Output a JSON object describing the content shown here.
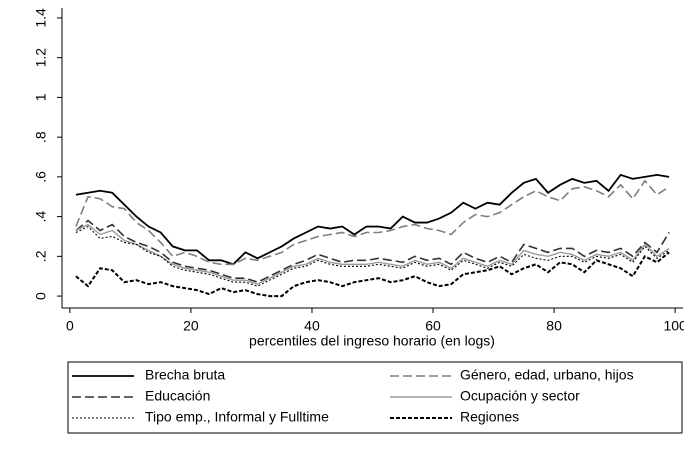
{
  "chart_data": {
    "type": "line",
    "x_label": "percentiles del ingreso horario (en logs)",
    "x": [
      1,
      3,
      5,
      7,
      9,
      11,
      13,
      15,
      17,
      19,
      21,
      23,
      25,
      27,
      29,
      31,
      33,
      35,
      37,
      39,
      41,
      43,
      45,
      47,
      49,
      51,
      53,
      55,
      57,
      59,
      61,
      63,
      65,
      67,
      69,
      71,
      73,
      75,
      77,
      79,
      81,
      83,
      85,
      87,
      89,
      91,
      93,
      95,
      97,
      99
    ],
    "xlim": [
      -1.3,
      101.3
    ],
    "xticks": [
      0,
      20,
      40,
      60,
      80,
      100
    ],
    "ylim": [
      -0.06,
      1.45
    ],
    "yticks": [
      0,
      {
        "value": 0.2,
        "label": ".2"
      },
      {
        "value": 0.4,
        "label": ".4"
      },
      {
        "value": 0.6,
        "label": ".6"
      },
      {
        "value": 0.8,
        "label": ".8"
      },
      1,
      1.2,
      1.4
    ],
    "legend": "bottom",
    "series": [
      {
        "name": "Brecha bruta",
        "color": "#000000",
        "width": 1.8,
        "dash": "none",
        "values": [
          0.51,
          0.52,
          0.53,
          0.52,
          0.46,
          0.4,
          0.35,
          0.32,
          0.25,
          0.23,
          0.23,
          0.18,
          0.18,
          0.16,
          0.22,
          0.19,
          0.22,
          0.25,
          0.29,
          0.32,
          0.35,
          0.34,
          0.35,
          0.31,
          0.35,
          0.35,
          0.34,
          0.4,
          0.37,
          0.37,
          0.39,
          0.42,
          0.47,
          0.44,
          0.47,
          0.46,
          0.52,
          0.57,
          0.59,
          0.52,
          0.56,
          0.59,
          0.57,
          0.58,
          0.53,
          0.61,
          0.59,
          0.6,
          0.61,
          0.6
        ]
      },
      {
        "name": "Género, edad, urbano, hijos",
        "color": "#7f7f7f",
        "width": 1.6,
        "dash": "9 4",
        "values": [
          0.35,
          0.5,
          0.49,
          0.45,
          0.44,
          0.37,
          0.33,
          0.27,
          0.2,
          0.22,
          0.2,
          0.17,
          0.16,
          0.16,
          0.19,
          0.18,
          0.2,
          0.22,
          0.26,
          0.28,
          0.3,
          0.31,
          0.32,
          0.3,
          0.32,
          0.32,
          0.33,
          0.35,
          0.36,
          0.34,
          0.33,
          0.31,
          0.37,
          0.41,
          0.4,
          0.42,
          0.46,
          0.5,
          0.53,
          0.5,
          0.48,
          0.54,
          0.55,
          0.53,
          0.5,
          0.56,
          0.49,
          0.58,
          0.51,
          0.55
        ]
      },
      {
        "name": "Educación",
        "color": "#333333",
        "width": 1.6,
        "dash": "9 4",
        "values": [
          0.33,
          0.38,
          0.33,
          0.36,
          0.3,
          0.27,
          0.25,
          0.22,
          0.17,
          0.15,
          0.14,
          0.13,
          0.11,
          0.09,
          0.09,
          0.07,
          0.1,
          0.13,
          0.16,
          0.18,
          0.21,
          0.19,
          0.17,
          0.18,
          0.18,
          0.19,
          0.18,
          0.17,
          0.2,
          0.18,
          0.19,
          0.16,
          0.22,
          0.19,
          0.17,
          0.2,
          0.17,
          0.26,
          0.24,
          0.22,
          0.24,
          0.24,
          0.2,
          0.23,
          0.22,
          0.24,
          0.2,
          0.27,
          0.22,
          0.32
        ]
      },
      {
        "name": "Ocupación y sector",
        "color": "#9a9a9a",
        "width": 1.4,
        "dash": "none",
        "values": [
          0.33,
          0.36,
          0.31,
          0.33,
          0.28,
          0.26,
          0.23,
          0.2,
          0.16,
          0.14,
          0.13,
          0.12,
          0.1,
          0.08,
          0.08,
          0.06,
          0.09,
          0.12,
          0.15,
          0.16,
          0.19,
          0.17,
          0.16,
          0.16,
          0.16,
          0.17,
          0.16,
          0.15,
          0.18,
          0.16,
          0.17,
          0.14,
          0.19,
          0.17,
          0.15,
          0.18,
          0.16,
          0.23,
          0.21,
          0.2,
          0.22,
          0.21,
          0.18,
          0.21,
          0.2,
          0.22,
          0.18,
          0.26,
          0.2,
          0.24
        ]
      },
      {
        "name": "Tipo emp., Informal y Fulltime",
        "color": "#000000",
        "width": 1.1,
        "dash": "2 2",
        "values": [
          0.32,
          0.35,
          0.29,
          0.3,
          0.27,
          0.26,
          0.22,
          0.2,
          0.15,
          0.13,
          0.12,
          0.11,
          0.09,
          0.07,
          0.07,
          0.05,
          0.08,
          0.11,
          0.14,
          0.15,
          0.18,
          0.16,
          0.15,
          0.15,
          0.15,
          0.16,
          0.15,
          0.14,
          0.17,
          0.15,
          0.16,
          0.13,
          0.18,
          0.16,
          0.14,
          0.17,
          0.15,
          0.21,
          0.19,
          0.18,
          0.2,
          0.2,
          0.17,
          0.2,
          0.19,
          0.21,
          0.17,
          0.25,
          0.19,
          0.23
        ]
      },
      {
        "name": "Regiones",
        "color": "#000000",
        "width": 2,
        "dash": "4 2",
        "values": [
          0.1,
          0.05,
          0.14,
          0.13,
          0.07,
          0.08,
          0.06,
          0.07,
          0.05,
          0.04,
          0.03,
          0.01,
          0.04,
          0.02,
          0.03,
          0.01,
          0.0,
          0.0,
          0.05,
          0.07,
          0.08,
          0.07,
          0.05,
          0.07,
          0.08,
          0.09,
          0.07,
          0.08,
          0.1,
          0.07,
          0.05,
          0.06,
          0.11,
          0.12,
          0.13,
          0.15,
          0.11,
          0.14,
          0.16,
          0.12,
          0.17,
          0.16,
          0.12,
          0.18,
          0.16,
          0.14,
          0.1,
          0.2,
          0.17,
          0.22
        ]
      }
    ]
  }
}
